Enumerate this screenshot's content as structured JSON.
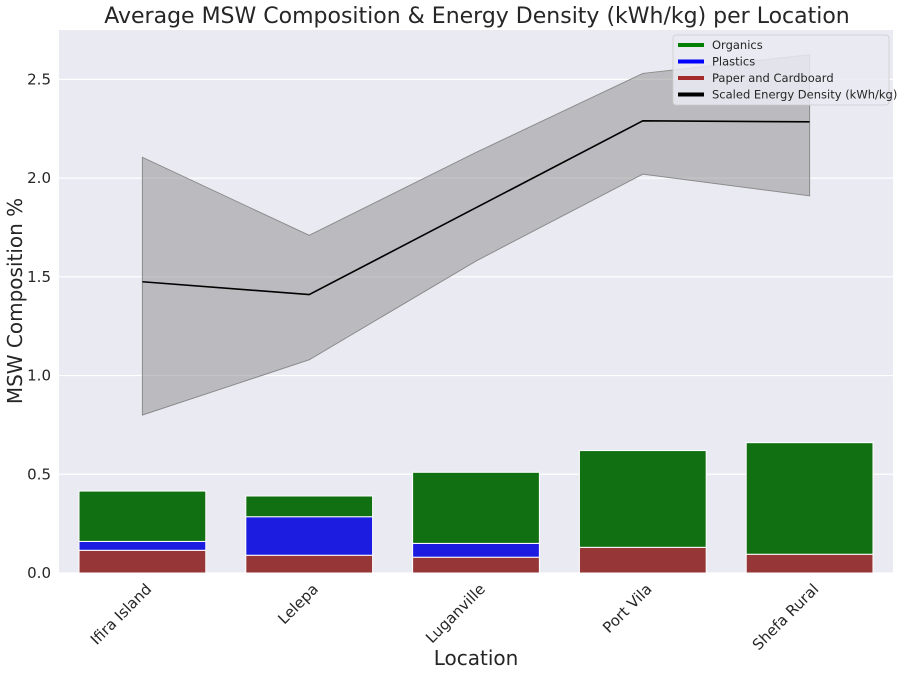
{
  "chart_data": {
    "type": "bar",
    "title": "Average MSW Composition & Energy Density (kWh/kg) per Location",
    "xlabel": "Location",
    "ylabel": "MSW Composition %",
    "categories": [
      "Ifira Island",
      "Lelepa",
      "Luganville",
      "Port Vila",
      "Shefa Rural"
    ],
    "ylim": [
      0,
      2.75
    ],
    "yticks": [
      "0.0",
      "0.5",
      "1.0",
      "1.5",
      "2.0",
      "2.5"
    ],
    "grid": true,
    "legend_position": "top-right",
    "stacked": true,
    "series": [
      {
        "name": "Paper and Cardboard",
        "color": "#963636",
        "values": [
          0.115,
          0.09,
          0.08,
          0.13,
          0.095
        ]
      },
      {
        "name": "Plastics",
        "color": "#1c1ce0",
        "values": [
          0.045,
          0.195,
          0.07,
          0.0,
          0.0
        ]
      },
      {
        "name": "Organics",
        "color": "#117011",
        "values": [
          0.255,
          0.105,
          0.36,
          0.49,
          0.565
        ]
      }
    ],
    "line_series": {
      "name": "Scaled Energy Density (kWh/kg)",
      "color": "#000000",
      "values": [
        1.475,
        1.41,
        1.85,
        2.29,
        2.285
      ],
      "band_lower": [
        0.8,
        1.08,
        1.58,
        2.02,
        1.91
      ],
      "band_upper": [
        2.105,
        1.71,
        2.13,
        2.53,
        2.625
      ]
    },
    "legend": [
      {
        "label": "Organics",
        "color": "#008000"
      },
      {
        "label": "Plastics",
        "color": "#0000ff"
      },
      {
        "label": "Paper and Cardboard",
        "color": "#a52a2a"
      },
      {
        "label": "Scaled Energy Density (kWh/kg)",
        "color": "#000000"
      }
    ]
  }
}
